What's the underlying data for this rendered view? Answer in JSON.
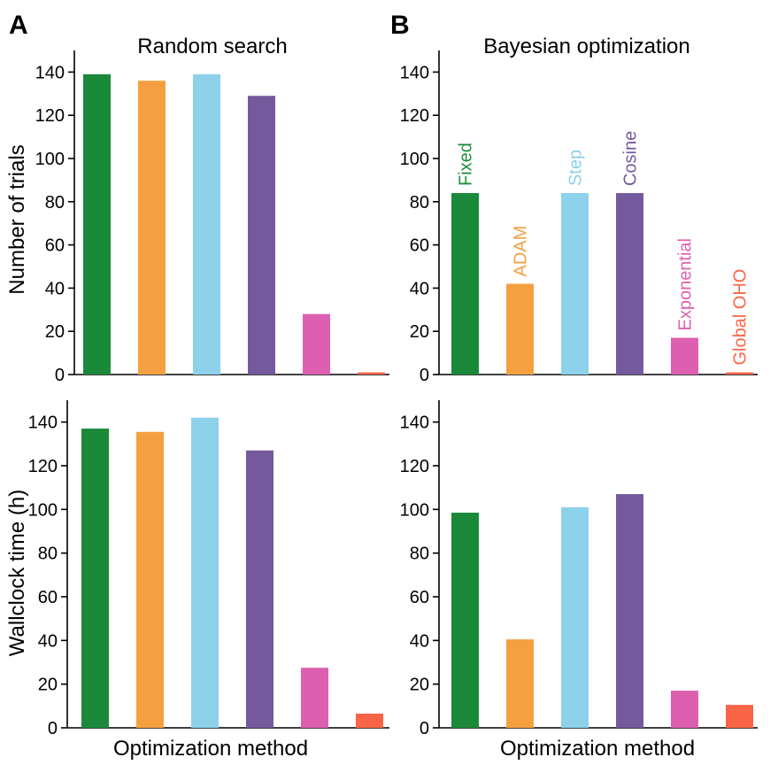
{
  "figure": {
    "panel_a_label": "A",
    "panel_b_label": "B",
    "ylabel_top": "Number of trials",
    "ylabel_bottom": "Wallclock time (h)",
    "xlabel": "Optimization method"
  },
  "methods": [
    "Fixed",
    "ADAM",
    "Step",
    "Cosine",
    "Exponential",
    "Global OHO"
  ],
  "colors": [
    "#1a8a3a",
    "#f4a040",
    "#8dd1ea",
    "#745a9c",
    "#dd5fb0",
    "#fa6446"
  ],
  "chart_data": [
    {
      "type": "bar",
      "panel": "A",
      "title": "Random search",
      "xlabel": "",
      "ylabel": "Number of trials",
      "categories": [
        "Fixed",
        "ADAM",
        "Step",
        "Cosine",
        "Exponential",
        "Global OHO"
      ],
      "values": [
        139,
        136,
        139,
        129,
        28,
        1
      ],
      "ylim": [
        0,
        150
      ],
      "yticks": [
        0,
        20,
        40,
        60,
        80,
        100,
        120,
        140
      ],
      "show_category_labels": false
    },
    {
      "type": "bar",
      "panel": "B",
      "title": "Bayesian optimization",
      "xlabel": "",
      "ylabel": "",
      "categories": [
        "Fixed",
        "ADAM",
        "Step",
        "Cosine",
        "Exponential",
        "Global OHO"
      ],
      "values": [
        84,
        42,
        84,
        84,
        17,
        1
      ],
      "ylim": [
        0,
        150
      ],
      "yticks": [
        0,
        20,
        40,
        60,
        80,
        100,
        120,
        140
      ],
      "show_category_labels": true
    },
    {
      "type": "bar",
      "panel": "A",
      "title": "",
      "xlabel": "Optimization method",
      "ylabel": "Wallclock time (h)",
      "categories": [
        "Fixed",
        "ADAM",
        "Step",
        "Cosine",
        "Exponential",
        "Global OHO"
      ],
      "values": [
        137,
        135.5,
        142,
        127,
        27.5,
        6.5
      ],
      "ylim": [
        0,
        150
      ],
      "yticks": [
        0,
        20,
        40,
        60,
        80,
        100,
        120,
        140
      ],
      "show_category_labels": false
    },
    {
      "type": "bar",
      "panel": "B",
      "title": "",
      "xlabel": "Optimization method",
      "ylabel": "",
      "categories": [
        "Fixed",
        "ADAM",
        "Step",
        "Cosine",
        "Exponential",
        "Global OHO"
      ],
      "values": [
        98.5,
        40.5,
        101,
        107,
        17,
        10.5
      ],
      "ylim": [
        0,
        150
      ],
      "yticks": [
        0,
        20,
        40,
        60,
        80,
        100,
        120,
        140
      ],
      "show_category_labels": false
    }
  ]
}
